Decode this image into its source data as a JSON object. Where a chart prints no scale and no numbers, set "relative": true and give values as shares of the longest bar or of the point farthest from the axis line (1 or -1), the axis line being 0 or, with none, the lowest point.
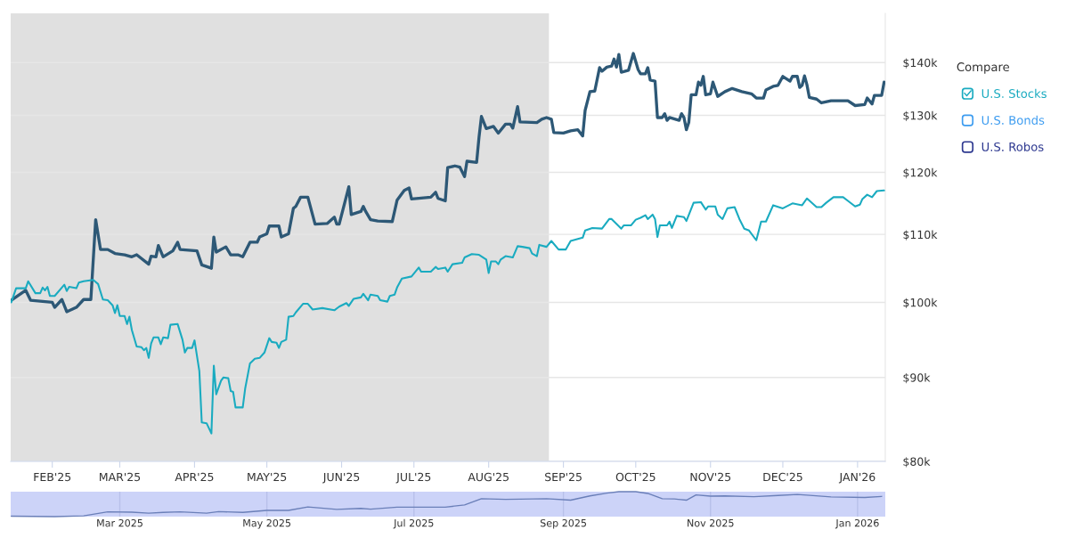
{
  "chart_data": [
    {
      "type": "line",
      "legend_title": "Compare",
      "legend": "right",
      "grid": "y",
      "log": "y",
      "tick_labels": "xy",
      "xlim": [
        "2025-01-14T18:00",
        "2026-01-12T12:00"
      ],
      "xticks": [
        {
          "value": "2025-02-01",
          "label": "FEB'25"
        },
        {
          "value": "2025-03-01",
          "label": "MAR'25"
        },
        {
          "value": "2025-04-01",
          "label": "APR'25"
        },
        {
          "value": "2025-05-01",
          "label": "MAY'25"
        },
        {
          "value": "2025-06-01",
          "label": "JUN'25"
        },
        {
          "value": "2025-07-01",
          "label": "JUL'25"
        },
        {
          "value": "2025-08-01",
          "label": "AUG'25"
        },
        {
          "value": "2025-09-01",
          "label": "SEP'25"
        },
        {
          "value": "2025-10-01",
          "label": "OCT'25"
        },
        {
          "value": "2025-11-01",
          "label": "NOV'25"
        },
        {
          "value": "2025-12-01",
          "label": "DEC'25"
        },
        {
          "value": "2026-01-01",
          "label": "JAN'26"
        }
      ],
      "ylim": [
        80,
        150
      ],
      "yticks": [
        {
          "value": 80,
          "label": "$80k"
        },
        {
          "value": 90,
          "label": "$90k"
        },
        {
          "value": 100,
          "label": "$100k"
        },
        {
          "value": 110,
          "label": "$110k"
        },
        {
          "value": 120,
          "label": "$120k"
        },
        {
          "value": 130,
          "label": "$130k"
        },
        {
          "value": 140,
          "label": "$140k"
        }
      ],
      "bands": [
        {
          "axis": "x",
          "from": "2025-01-14T18:00",
          "to": "2025-08-26",
          "color": "#e0e0e0"
        }
      ],
      "series": [
        {
          "color": "#2d5876",
          "x": [
            "2025-01-15",
            "2025-01-21",
            "2025-01-23",
            "2025-02-01",
            "2025-02-02",
            "2025-02-05",
            "2025-02-07",
            "2025-02-11",
            "2025-02-14",
            "2025-02-17",
            "2025-02-19",
            "2025-02-21",
            "2025-02-24",
            "2025-02-27",
            "2025-03-03",
            "2025-03-06",
            "2025-03-08",
            "2025-03-13",
            "2025-03-14",
            "2025-03-16",
            "2025-03-17",
            "2025-03-19",
            "2025-03-23",
            "2025-03-25",
            "2025-03-26",
            "2025-04-02",
            "2025-04-04",
            "2025-04-08",
            "2025-04-09",
            "2025-04-10",
            "2025-04-14",
            "2025-04-16",
            "2025-04-19",
            "2025-04-21",
            "2025-04-24",
            "2025-04-27",
            "2025-04-28",
            "2025-05-01",
            "2025-05-02",
            "2025-05-06",
            "2025-05-07",
            "2025-05-10",
            "2025-05-12",
            "2025-05-13",
            "2025-05-15",
            "2025-05-18",
            "2025-05-21",
            "2025-05-26",
            "2025-05-29",
            "2025-05-30",
            "2025-05-31",
            "2025-06-04",
            "2025-06-05",
            "2025-06-09",
            "2025-06-10",
            "2025-06-11",
            "2025-06-13",
            "2025-06-16",
            "2025-06-22",
            "2025-06-24",
            "2025-06-27",
            "2025-06-29",
            "2025-06-30",
            "2025-07-08",
            "2025-07-10",
            "2025-07-11",
            "2025-07-14",
            "2025-07-15",
            "2025-07-18",
            "2025-07-20",
            "2025-07-22",
            "2025-07-23",
            "2025-07-27",
            "2025-07-28",
            "2025-07-29",
            "2025-07-31",
            "2025-08-03",
            "2025-08-05",
            "2025-08-08",
            "2025-08-10",
            "2025-08-11",
            "2025-08-13",
            "2025-08-14",
            "2025-08-21",
            "2025-08-23",
            "2025-08-25",
            "2025-08-27",
            "2025-08-28",
            "2025-09-01",
            "2025-09-04",
            "2025-09-07",
            "2025-09-09",
            "2025-09-10",
            "2025-09-12",
            "2025-09-14",
            "2025-09-16",
            "2025-09-17",
            "2025-09-19",
            "2025-09-21",
            "2025-09-22",
            "2025-09-23",
            "2025-09-24",
            "2025-09-25",
            "2025-09-28",
            "2025-09-30",
            "2025-10-02",
            "2025-10-03",
            "2025-10-05",
            "2025-10-06",
            "2025-10-07",
            "2025-10-09",
            "2025-10-10",
            "2025-10-12",
            "2025-10-13",
            "2025-10-14",
            "2025-10-15",
            "2025-10-19",
            "2025-10-20",
            "2025-10-21",
            "2025-10-22",
            "2025-10-23",
            "2025-10-24",
            "2025-10-26",
            "2025-10-27",
            "2025-10-28",
            "2025-10-29",
            "2025-10-30",
            "2025-11-01",
            "2025-11-02",
            "2025-11-04",
            "2025-11-07",
            "2025-11-10",
            "2025-11-14",
            "2025-11-18",
            "2025-11-20",
            "2025-11-23",
            "2025-11-24",
            "2025-11-27",
            "2025-11-29",
            "2025-12-01",
            "2025-12-04",
            "2025-12-05",
            "2025-12-07",
            "2025-12-08",
            "2025-12-09",
            "2025-12-10",
            "2025-12-11",
            "2025-12-12",
            "2025-12-15",
            "2025-12-17",
            "2025-12-21",
            "2025-12-28",
            "2025-12-31",
            "2026-01-04",
            "2026-01-05",
            "2026-01-07",
            "2026-01-08",
            "2026-01-11",
            "2026-01-12"
          ],
          "values": [
            100.3,
            101.7,
            100.3,
            100.0,
            99.3,
            100.4,
            98.7,
            99.3,
            100.4,
            100.4,
            112.3,
            107.7,
            107.7,
            107.1,
            106.9,
            106.6,
            106.9,
            105.5,
            106.7,
            106.6,
            108.3,
            106.6,
            107.5,
            108.8,
            107.7,
            107.5,
            105.4,
            104.9,
            109.6,
            107.3,
            108.1,
            106.9,
            106.9,
            106.6,
            108.8,
            108.8,
            109.6,
            110.1,
            111.3,
            111.3,
            109.6,
            110.1,
            114.1,
            114.4,
            115.9,
            115.9,
            111.6,
            111.7,
            112.7,
            111.6,
            111.6,
            117.6,
            113.1,
            113.6,
            114.4,
            113.6,
            112.3,
            112.1,
            112.0,
            115.4,
            117.0,
            117.4,
            115.6,
            115.9,
            116.7,
            115.7,
            115.3,
            120.8,
            121.1,
            120.9,
            119.3,
            121.9,
            121.7,
            126.1,
            129.8,
            127.6,
            128.0,
            126.8,
            128.4,
            128.4,
            127.7,
            131.6,
            128.8,
            128.7,
            129.3,
            129.6,
            129.3,
            126.9,
            126.8,
            127.2,
            127.4,
            126.3,
            130.9,
            134.4,
            134.5,
            139.0,
            138.3,
            139.1,
            139.3,
            140.7,
            139.1,
            141.6,
            138.1,
            138.5,
            141.8,
            138.6,
            137.8,
            137.8,
            139.0,
            136.6,
            136.4,
            129.6,
            129.6,
            130.3,
            129.1,
            129.6,
            129.1,
            130.3,
            129.6,
            127.4,
            128.7,
            133.8,
            133.8,
            136.2,
            135.6,
            137.3,
            133.8,
            134.0,
            136.2,
            133.5,
            134.4,
            135.0,
            134.4,
            134.0,
            133.2,
            133.2,
            134.7,
            135.4,
            135.6,
            137.3,
            136.4,
            137.3,
            137.3,
            135.2,
            135.6,
            137.4,
            135.7,
            133.3,
            133.0,
            132.3,
            132.7,
            132.7,
            131.8,
            132.0,
            133.2,
            132.1,
            133.7,
            133.7,
            136.2
          ]
        },
        {
          "name": "U.S. Stocks",
          "color": "#1aabc0",
          "x": [
            "2025-01-15",
            "2025-01-17",
            "2025-01-21",
            "2025-01-22",
            "2025-01-25",
            "2025-01-27",
            "2025-01-28",
            "2025-01-29",
            "2025-01-30",
            "2025-01-31",
            "2025-02-02",
            "2025-02-06",
            "2025-02-07",
            "2025-02-08",
            "2025-02-11",
            "2025-02-12",
            "2025-02-14",
            "2025-02-18",
            "2025-02-20",
            "2025-02-22",
            "2025-02-24",
            "2025-02-26",
            "2025-02-27",
            "2025-02-28",
            "2025-03-01",
            "2025-03-03",
            "2025-03-04",
            "2025-03-05",
            "2025-03-06",
            "2025-03-08",
            "2025-03-10",
            "2025-03-11",
            "2025-03-12",
            "2025-03-13",
            "2025-03-14",
            "2025-03-15",
            "2025-03-17",
            "2025-03-18",
            "2025-03-19",
            "2025-03-21",
            "2025-03-22",
            "2025-03-25",
            "2025-03-27",
            "2025-03-28",
            "2025-03-29",
            "2025-03-31",
            "2025-04-01",
            "2025-04-03",
            "2025-04-04",
            "2025-04-06",
            "2025-04-08",
            "2025-04-09",
            "2025-04-10",
            "2025-04-12",
            "2025-04-13",
            "2025-04-15",
            "2025-04-16",
            "2025-04-17",
            "2025-04-18",
            "2025-04-21",
            "2025-04-22",
            "2025-04-24",
            "2025-04-26",
            "2025-04-28",
            "2025-04-30",
            "2025-05-02",
            "2025-05-03",
            "2025-05-05",
            "2025-05-06",
            "2025-05-07",
            "2025-05-09",
            "2025-05-10",
            "2025-05-12",
            "2025-05-13",
            "2025-05-16",
            "2025-05-18",
            "2025-05-20",
            "2025-05-24",
            "2025-05-29",
            "2025-05-31",
            "2025-06-03",
            "2025-06-04",
            "2025-06-06",
            "2025-06-09",
            "2025-06-10",
            "2025-06-12",
            "2025-06-13",
            "2025-06-16",
            "2025-06-17",
            "2025-06-20",
            "2025-06-21",
            "2025-06-23",
            "2025-06-24",
            "2025-06-26",
            "2025-06-30",
            "2025-07-03",
            "2025-07-04",
            "2025-07-08",
            "2025-07-10",
            "2025-07-11",
            "2025-07-14",
            "2025-07-15",
            "2025-07-17",
            "2025-07-21",
            "2025-07-22",
            "2025-07-25",
            "2025-07-28",
            "2025-07-31",
            "2025-08-01",
            "2025-08-02",
            "2025-08-04",
            "2025-08-05",
            "2025-08-06",
            "2025-08-08",
            "2025-08-11",
            "2025-08-13",
            "2025-08-15",
            "2025-08-18",
            "2025-08-19",
            "2025-08-21",
            "2025-08-22",
            "2025-08-25",
            "2025-08-27",
            "2025-08-30",
            "2025-09-02",
            "2025-09-04",
            "2025-09-06",
            "2025-09-09",
            "2025-09-10",
            "2025-09-13",
            "2025-09-17",
            "2025-09-20",
            "2025-09-21",
            "2025-09-25",
            "2025-09-26",
            "2025-09-29",
            "2025-10-01",
            "2025-10-03",
            "2025-10-05",
            "2025-10-06",
            "2025-10-08",
            "2025-10-09",
            "2025-10-10",
            "2025-10-11",
            "2025-10-14",
            "2025-10-15",
            "2025-10-16",
            "2025-10-18",
            "2025-10-21",
            "2025-10-22",
            "2025-10-25",
            "2025-10-28",
            "2025-10-30",
            "2025-10-31",
            "2025-11-03",
            "2025-11-04",
            "2025-11-06",
            "2025-11-08",
            "2025-11-11",
            "2025-11-13",
            "2025-11-15",
            "2025-11-17",
            "2025-11-20",
            "2025-11-22",
            "2025-11-24",
            "2025-11-27",
            "2025-12-01",
            "2025-12-05",
            "2025-12-09",
            "2025-12-11",
            "2025-12-15",
            "2025-12-17",
            "2025-12-19",
            "2025-12-22",
            "2025-12-26",
            "2025-12-28",
            "2025-12-31",
            "2026-01-02",
            "2026-01-03",
            "2026-01-05",
            "2026-01-07",
            "2026-01-09",
            "2026-01-12"
          ],
          "values": [
            100.0,
            102.0,
            102.0,
            103.0,
            101.3,
            101.3,
            102.1,
            101.7,
            102.2,
            100.9,
            100.9,
            102.5,
            101.6,
            102.2,
            102.0,
            102.8,
            103.0,
            103.2,
            102.6,
            100.4,
            100.3,
            99.6,
            98.5,
            99.6,
            98.1,
            98.1,
            97.0,
            98.0,
            96.2,
            94.0,
            93.9,
            93.5,
            93.8,
            92.5,
            94.4,
            95.2,
            95.2,
            94.3,
            95.2,
            95.1,
            96.9,
            97.0,
            94.9,
            93.2,
            93.8,
            93.8,
            94.8,
            90.8,
            84.5,
            84.4,
            83.2,
            91.5,
            87.9,
            89.6,
            90.0,
            89.9,
            88.3,
            88.2,
            86.3,
            86.3,
            88.6,
            91.8,
            92.4,
            92.5,
            93.2,
            95.1,
            94.6,
            94.5,
            93.8,
            94.6,
            94.9,
            98.0,
            98.1,
            98.6,
            99.8,
            99.8,
            99.0,
            99.2,
            98.9,
            99.4,
            99.9,
            99.5,
            100.5,
            100.7,
            101.2,
            100.3,
            101.1,
            100.9,
            100.3,
            100.1,
            100.9,
            101.1,
            102.1,
            103.4,
            103.7,
            105.0,
            104.4,
            104.4,
            105.1,
            104.8,
            105.0,
            104.4,
            105.5,
            105.7,
            106.5,
            107.0,
            106.9,
            106.2,
            104.2,
            105.9,
            105.9,
            105.5,
            106.2,
            106.7,
            106.5,
            108.2,
            108.1,
            107.9,
            107.1,
            106.7,
            108.4,
            108.1,
            109.0,
            107.7,
            107.7,
            109.0,
            109.2,
            109.5,
            110.6,
            111.0,
            110.9,
            112.4,
            112.4,
            110.9,
            111.4,
            111.4,
            112.3,
            112.6,
            113.0,
            112.4,
            113.1,
            112.4,
            109.6,
            111.4,
            111.4,
            112.0,
            111.0,
            112.9,
            112.7,
            112.1,
            115.0,
            115.1,
            113.9,
            114.4,
            114.4,
            113.1,
            112.4,
            114.1,
            114.3,
            112.4,
            110.9,
            110.6,
            109.1,
            112.0,
            112.0,
            114.6,
            114.1,
            114.9,
            114.6,
            115.7,
            114.3,
            114.3,
            115.0,
            115.9,
            115.9,
            115.3,
            114.4,
            114.7,
            115.6,
            116.3,
            115.9,
            116.9,
            117.0
          ]
        },
        {
          "name": "U.S. Bonds",
          "color": "#3d9cf0"
        },
        {
          "name": "U.S. Robos",
          "color": "#2e3990"
        }
      ]
    },
    {
      "type": "line",
      "relative": true,
      "grid": "x",
      "tick_labels": "x",
      "xlim": [
        "2025-01-14T18:00",
        "2026-01-12T12:00"
      ],
      "xticks": [
        {
          "value": "2025-03-01",
          "label": "Mar 2025"
        },
        {
          "value": "2025-05-01",
          "label": "May 2025"
        },
        {
          "value": "2025-07-01",
          "label": "Jul 2025"
        },
        {
          "value": "2025-09-01",
          "label": "Sep 2025"
        },
        {
          "value": "2025-11-01",
          "label": "Nov 2025"
        },
        {
          "value": "2026-01-01",
          "label": "Jan 2026"
        }
      ],
      "series": [
        {
          "color": "#6a7fb8",
          "x": [
            "2025-01-15",
            "2025-02-02",
            "2025-02-14",
            "2025-02-24",
            "2025-03-06",
            "2025-03-13",
            "2025-03-19",
            "2025-03-26",
            "2025-04-06",
            "2025-04-11",
            "2025-04-21",
            "2025-05-01",
            "2025-05-10",
            "2025-05-18",
            "2025-05-30",
            "2025-06-09",
            "2025-06-13",
            "2025-06-24",
            "2025-06-30",
            "2025-07-14",
            "2025-07-22",
            "2025-07-29",
            "2025-08-08",
            "2025-08-14",
            "2025-08-25",
            "2025-09-04",
            "2025-09-12",
            "2025-09-19",
            "2025-09-24",
            "2025-10-01",
            "2025-10-06",
            "2025-10-12",
            "2025-10-17",
            "2025-10-22",
            "2025-10-26",
            "2025-11-01",
            "2025-11-07",
            "2025-11-19",
            "2025-11-29",
            "2025-12-07",
            "2025-12-11",
            "2025-12-21",
            "2026-01-04",
            "2026-01-11"
          ],
          "values": [
            0.02,
            0.0,
            0.03,
            0.19,
            0.18,
            0.14,
            0.17,
            0.19,
            0.14,
            0.2,
            0.17,
            0.25,
            0.25,
            0.39,
            0.29,
            0.33,
            0.3,
            0.38,
            0.38,
            0.38,
            0.47,
            0.72,
            0.69,
            0.7,
            0.72,
            0.66,
            0.83,
            0.94,
            1.0,
            1.0,
            0.93,
            0.72,
            0.71,
            0.66,
            0.87,
            0.82,
            0.83,
            0.8,
            0.85,
            0.89,
            0.86,
            0.79,
            0.77,
            0.81
          ]
        }
      ]
    }
  ]
}
